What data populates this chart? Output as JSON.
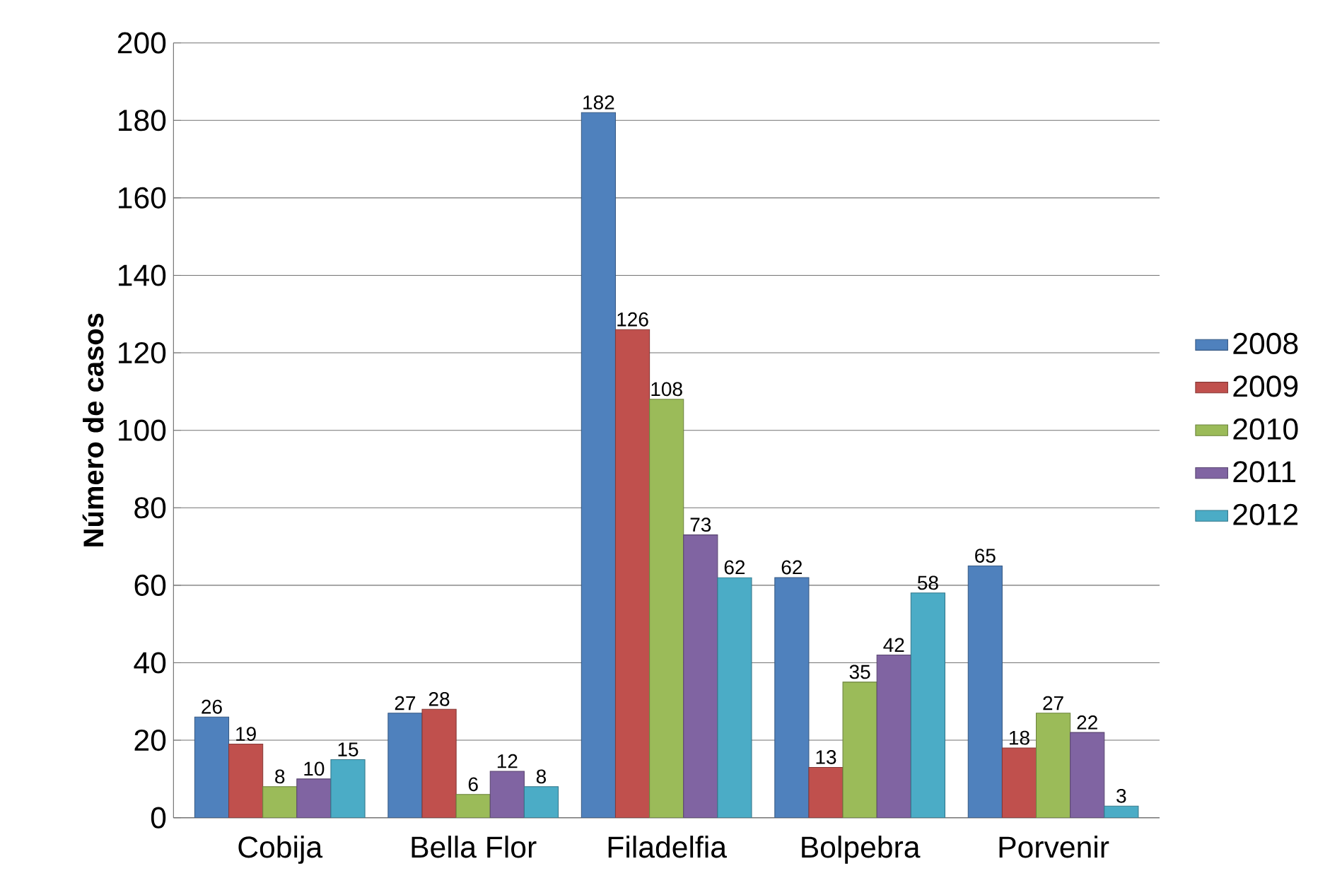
{
  "chart_data": {
    "type": "bar",
    "ylabel": "Número de casos",
    "categories": [
      "Cobija",
      "Bella Flor",
      "Filadelfia",
      "Bolpebra",
      "Porvenir"
    ],
    "series": [
      {
        "name": "2008",
        "color": "#4f81bd",
        "values": [
          26,
          27,
          182,
          62,
          65
        ]
      },
      {
        "name": "2009",
        "color": "#c0504d",
        "values": [
          19,
          28,
          126,
          13,
          18
        ]
      },
      {
        "name": "2010",
        "color": "#9bbb59",
        "values": [
          8,
          6,
          108,
          35,
          27
        ]
      },
      {
        "name": "2011",
        "color": "#8064a2",
        "values": [
          10,
          12,
          73,
          42,
          22
        ]
      },
      {
        "name": "2012",
        "color": "#4bacc6",
        "values": [
          15,
          8,
          62,
          58,
          3
        ]
      }
    ],
    "ylim": [
      0,
      200
    ],
    "yticks": [
      0,
      20,
      40,
      60,
      80,
      100,
      120,
      140,
      160,
      180,
      200
    ],
    "grid": "y",
    "legend": "right",
    "data_labels": true
  }
}
